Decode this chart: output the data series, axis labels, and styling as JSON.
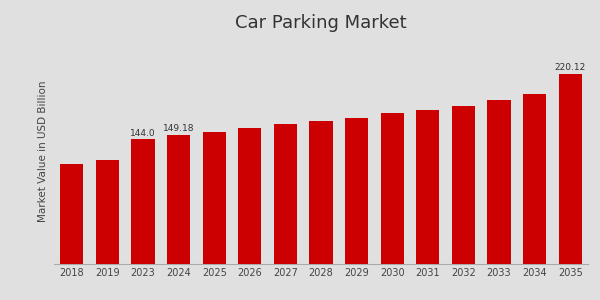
{
  "years": [
    "2018",
    "2019",
    "2023",
    "2024",
    "2025",
    "2026",
    "2027",
    "2028",
    "2029",
    "2030",
    "2031",
    "2032",
    "2033",
    "2034",
    "2035"
  ],
  "values": [
    116.0,
    120.5,
    144.0,
    149.18,
    152.0,
    157.5,
    162.0,
    165.5,
    169.0,
    174.0,
    178.5,
    183.0,
    190.0,
    197.0,
    220.12
  ],
  "bar_color": "#cc0000",
  "label_values": {
    "2023": "144.0",
    "2024": "149.18",
    "2035": "220.12"
  },
  "title": "Car Parking Market",
  "ylabel": "Market Value in USD Billion",
  "background_color": "#e0e0e0",
  "title_fontsize": 13,
  "label_fontsize": 6.5,
  "axis_label_fontsize": 7.5,
  "tick_fontsize": 7,
  "bar_width": 0.65,
  "ylim_max": 260,
  "red_strip_color": "#cc0000",
  "white_line_color": "#e0e0e0"
}
